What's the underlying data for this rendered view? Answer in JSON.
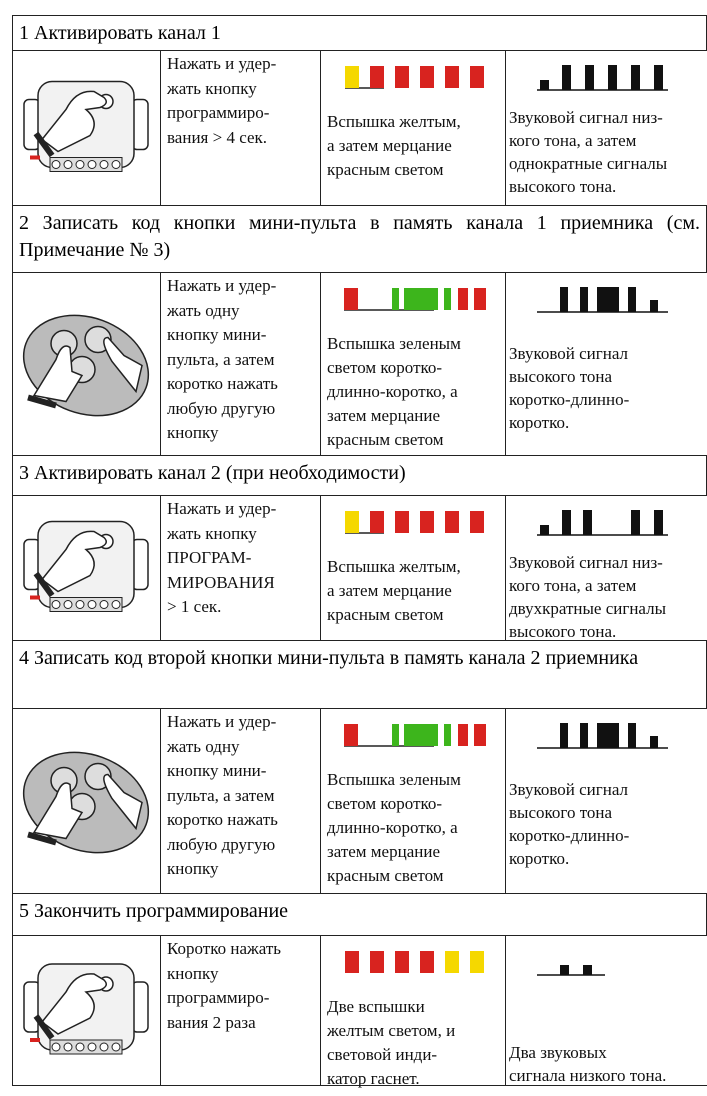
{
  "steps": [
    {
      "title": "1 Активировать канал 1",
      "instruction": [
        "Нажать и удер-",
        "жать кнопку",
        "программиро-",
        "вания > 4 сек."
      ],
      "light": [
        "Вспышка желтым,",
        "а затем мерцание",
        "красным светом"
      ],
      "sound": [
        "Звуковой сигнал низ-",
        "кого тона, а затем",
        "однократные сигналы",
        "высокого тона."
      ]
    },
    {
      "title": "2 Записать код кнопки мини-пульта в память канала 1 приемника (см. Примечание № 3)",
      "instruction": [
        "Нажать и удер-",
        "жать одну",
        "кнопку мини-",
        "пульта, а затем",
        "коротко нажать",
        "любую другую",
        "кнопку"
      ],
      "light": [
        "Вспышка зеленым",
        "светом коротко-",
        "длинно-коротко, а",
        "затем мерцание",
        "красным светом"
      ],
      "sound": [
        "Звуковой сигнал",
        "высокого тона",
        "коротко-длинно-",
        "коротко."
      ]
    },
    {
      "title": "3 Активировать канал 2 (при необходимости)",
      "instruction": [
        "Нажать и удер-",
        "жать кнопку",
        "ПРОГРАМ-",
        "МИРОВАНИЯ",
        "> 1 сек."
      ],
      "light": [
        "Вспышка желтым,",
        "а затем мерцание",
        "красным светом"
      ],
      "sound": [
        "Звуковой сигнал низ-",
        "кого тона, а затем",
        "двухкратные сигналы",
        "высокого тона."
      ]
    },
    {
      "title": "4 Записать код второй кнопки мини-пульта в память канала 2 приемника",
      "instruction": [
        "Нажать и удер-",
        "жать одну",
        "кнопку мини-",
        "пульта, а затем",
        "коротко нажать",
        "любую другую",
        "кнопку"
      ],
      "light": [
        "Вспышка зеленым",
        "светом коротко-",
        "длинно-коротко, а",
        "затем мерцание",
        "красным светом"
      ],
      "sound": [
        "Звуковой сигнал",
        "высокого тона",
        "коротко-длинно-",
        "коротко."
      ]
    },
    {
      "title": "5 Закончить программирование",
      "instruction": [
        "Коротко нажать",
        "кнопку",
        "программиро-",
        "вания 2 раза"
      ],
      "light": [
        "Две вспышки",
        "желтым светом, и",
        "световой инди-",
        "катор гаснет."
      ],
      "sound": [
        "Два звуковых",
        "сигнала низкого тона."
      ]
    }
  ]
}
